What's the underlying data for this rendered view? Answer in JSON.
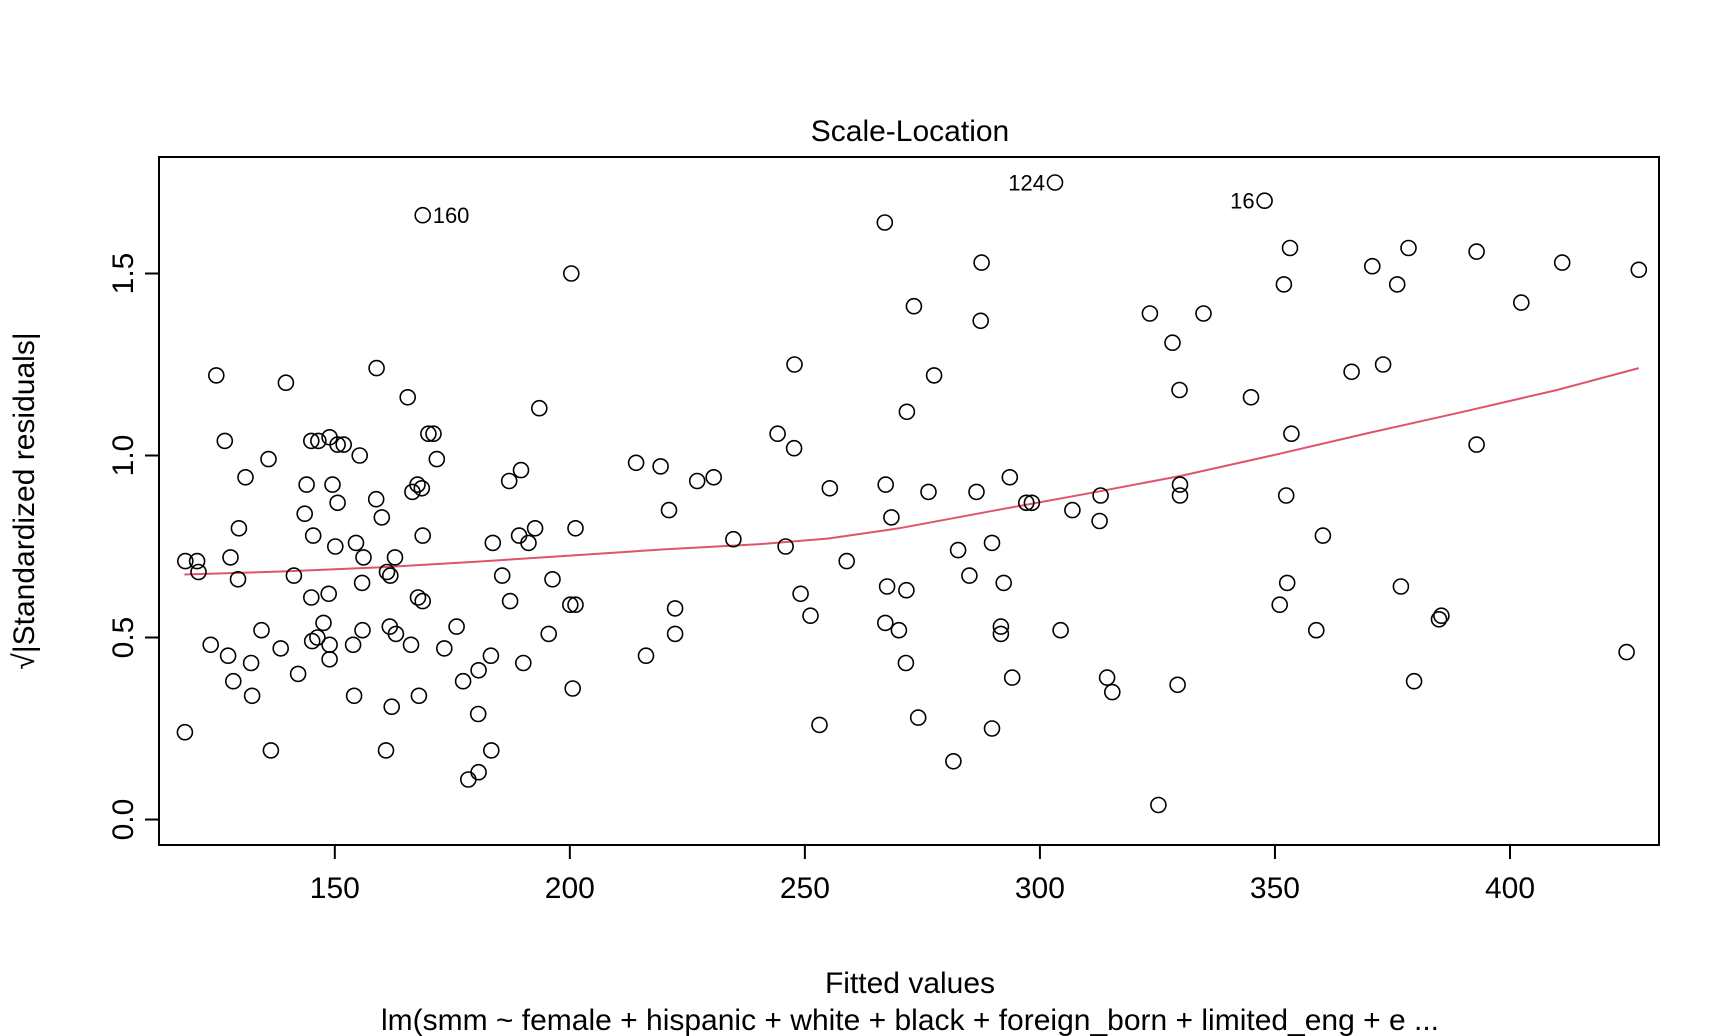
{
  "chart_data": {
    "type": "scatter",
    "title": "Scale-Location",
    "xlabel": "Fitted values",
    "ylabel": "√|Standardized residuals|",
    "subtitle": "lm(smm ~ female + hispanic + white + black + foreign_born + limited_eng + e ...",
    "xlim": [
      112.6,
      431.7
    ],
    "ylim": [
      -0.07,
      1.82
    ],
    "x_ticks": [
      150,
      200,
      250,
      300,
      350,
      400
    ],
    "y_ticks": [
      0.0,
      0.5,
      1.0,
      1.5
    ],
    "x_tick_labels": [
      "150",
      "200",
      "250",
      "300",
      "350",
      "400"
    ],
    "y_tick_labels": [
      "0.0",
      "0.5",
      "1.0",
      "1.5"
    ],
    "grid": false,
    "point_color": "#000000",
    "smooth_color": "#DF536B",
    "annotations": [
      {
        "label": "160",
        "x": 168.7,
        "y": 1.66,
        "side": "right"
      },
      {
        "label": "124",
        "x": 303.2,
        "y": 1.75,
        "side": "left"
      },
      {
        "label": "16",
        "x": 347.8,
        "y": 1.7,
        "side": "left"
      }
    ],
    "points": [
      [
        168.7,
        1.66
      ],
      [
        200.3,
        1.5
      ],
      [
        303.2,
        1.75
      ],
      [
        347.8,
        1.7
      ],
      [
        267.0,
        1.64
      ],
      [
        287.6,
        1.53
      ],
      [
        273.2,
        1.41
      ],
      [
        287.4,
        1.37
      ],
      [
        353.2,
        1.57
      ],
      [
        351.9,
        1.47
      ],
      [
        370.7,
        1.52
      ],
      [
        378.4,
        1.57
      ],
      [
        376.0,
        1.47
      ],
      [
        392.9,
        1.56
      ],
      [
        411.1,
        1.53
      ],
      [
        427.4,
        1.51
      ],
      [
        402.4,
        1.42
      ],
      [
        323.4,
        1.39
      ],
      [
        328.2,
        1.31
      ],
      [
        334.8,
        1.39
      ],
      [
        329.7,
        1.18
      ],
      [
        344.9,
        1.16
      ],
      [
        353.5,
        1.06
      ],
      [
        366.3,
        1.23
      ],
      [
        373.0,
        1.25
      ],
      [
        392.9,
        1.03
      ],
      [
        124.8,
        1.22
      ],
      [
        139.6,
        1.2
      ],
      [
        158.9,
        1.24
      ],
      [
        165.5,
        1.16
      ],
      [
        193.5,
        1.13
      ],
      [
        247.8,
        1.25
      ],
      [
        277.5,
        1.22
      ],
      [
        271.7,
        1.12
      ],
      [
        126.6,
        1.04
      ],
      [
        145.0,
        1.04
      ],
      [
        146.5,
        1.04
      ],
      [
        148.9,
        1.05
      ],
      [
        150.6,
        1.03
      ],
      [
        151.9,
        1.03
      ],
      [
        169.9,
        1.06
      ],
      [
        171.0,
        1.06
      ],
      [
        131.0,
        0.94
      ],
      [
        135.9,
        0.99
      ],
      [
        155.3,
        1.0
      ],
      [
        171.7,
        0.99
      ],
      [
        144.0,
        0.92
      ],
      [
        149.5,
        0.92
      ],
      [
        166.5,
        0.9
      ],
      [
        167.6,
        0.92
      ],
      [
        168.5,
        0.91
      ],
      [
        158.8,
        0.88
      ],
      [
        150.6,
        0.87
      ],
      [
        143.6,
        0.84
      ],
      [
        160.0,
        0.83
      ],
      [
        145.4,
        0.78
      ],
      [
        168.7,
        0.78
      ],
      [
        154.5,
        0.76
      ],
      [
        150.1,
        0.75
      ],
      [
        156.1,
        0.72
      ],
      [
        162.8,
        0.72
      ],
      [
        187.1,
        0.93
      ],
      [
        189.6,
        0.96
      ],
      [
        214.1,
        0.98
      ],
      [
        219.3,
        0.97
      ],
      [
        227.1,
        0.93
      ],
      [
        230.6,
        0.94
      ],
      [
        244.2,
        1.06
      ],
      [
        247.7,
        1.02
      ],
      [
        255.3,
        0.91
      ],
      [
        267.2,
        0.92
      ],
      [
        276.3,
        0.9
      ],
      [
        286.5,
        0.9
      ],
      [
        293.6,
        0.94
      ],
      [
        297.1,
        0.87
      ],
      [
        298.3,
        0.87
      ],
      [
        312.9,
        0.89
      ],
      [
        329.8,
        0.92
      ],
      [
        329.8,
        0.89
      ],
      [
        352.4,
        0.89
      ],
      [
        360.2,
        0.78
      ],
      [
        306.9,
        0.85
      ],
      [
        312.7,
        0.82
      ],
      [
        268.4,
        0.83
      ],
      [
        221.1,
        0.85
      ],
      [
        192.6,
        0.8
      ],
      [
        201.2,
        0.8
      ],
      [
        191.2,
        0.76
      ],
      [
        189.2,
        0.78
      ],
      [
        183.6,
        0.76
      ],
      [
        234.8,
        0.77
      ],
      [
        245.9,
        0.75
      ],
      [
        258.9,
        0.71
      ],
      [
        282.6,
        0.74
      ],
      [
        289.8,
        0.76
      ],
      [
        118.2,
        0.71
      ],
      [
        120.7,
        0.71
      ],
      [
        127.8,
        0.72
      ],
      [
        121.0,
        0.68
      ],
      [
        129.6,
        0.8
      ],
      [
        129.4,
        0.66
      ],
      [
        141.3,
        0.67
      ],
      [
        161.1,
        0.68
      ],
      [
        161.8,
        0.67
      ],
      [
        155.8,
        0.65
      ],
      [
        148.7,
        0.62
      ],
      [
        145.0,
        0.61
      ],
      [
        167.7,
        0.61
      ],
      [
        168.7,
        0.6
      ],
      [
        187.3,
        0.6
      ],
      [
        196.3,
        0.66
      ],
      [
        185.6,
        0.67
      ],
      [
        200.1,
        0.59
      ],
      [
        201.2,
        0.59
      ],
      [
        222.4,
        0.58
      ],
      [
        249.1,
        0.62
      ],
      [
        251.2,
        0.56
      ],
      [
        267.5,
        0.64
      ],
      [
        271.6,
        0.63
      ],
      [
        285.0,
        0.67
      ],
      [
        292.3,
        0.65
      ],
      [
        267.1,
        0.54
      ],
      [
        270.0,
        0.52
      ],
      [
        291.7,
        0.53
      ],
      [
        291.7,
        0.51
      ],
      [
        304.4,
        0.52
      ],
      [
        352.6,
        0.65
      ],
      [
        351.0,
        0.59
      ],
      [
        358.8,
        0.52
      ],
      [
        376.8,
        0.64
      ],
      [
        384.9,
        0.55
      ],
      [
        385.4,
        0.56
      ],
      [
        424.8,
        0.46
      ],
      [
        147.6,
        0.54
      ],
      [
        146.3,
        0.5
      ],
      [
        145.2,
        0.49
      ],
      [
        148.9,
        0.48
      ],
      [
        153.9,
        0.48
      ],
      [
        155.9,
        0.52
      ],
      [
        161.7,
        0.53
      ],
      [
        163.0,
        0.51
      ],
      [
        166.2,
        0.48
      ],
      [
        175.9,
        0.53
      ],
      [
        173.3,
        0.47
      ],
      [
        195.5,
        0.51
      ],
      [
        222.4,
        0.51
      ],
      [
        216.2,
        0.45
      ],
      [
        134.4,
        0.52
      ],
      [
        138.5,
        0.47
      ],
      [
        123.6,
        0.48
      ],
      [
        127.3,
        0.45
      ],
      [
        128.4,
        0.38
      ],
      [
        132.2,
        0.43
      ],
      [
        132.4,
        0.34
      ],
      [
        142.2,
        0.4
      ],
      [
        148.9,
        0.44
      ],
      [
        154.1,
        0.34
      ],
      [
        162.1,
        0.31
      ],
      [
        167.9,
        0.34
      ],
      [
        177.3,
        0.38
      ],
      [
        180.6,
        0.41
      ],
      [
        183.2,
        0.45
      ],
      [
        190.1,
        0.43
      ],
      [
        200.6,
        0.36
      ],
      [
        180.5,
        0.29
      ],
      [
        183.3,
        0.19
      ],
      [
        178.4,
        0.11
      ],
      [
        180.6,
        0.13
      ],
      [
        160.9,
        0.19
      ],
      [
        136.4,
        0.19
      ],
      [
        118.1,
        0.24
      ],
      [
        253.1,
        0.26
      ],
      [
        274.1,
        0.28
      ],
      [
        271.5,
        0.43
      ],
      [
        281.6,
        0.16
      ],
      [
        289.8,
        0.25
      ],
      [
        294.1,
        0.39
      ],
      [
        314.3,
        0.39
      ],
      [
        315.4,
        0.35
      ],
      [
        329.3,
        0.37
      ],
      [
        379.6,
        0.38
      ],
      [
        325.2,
        0.04
      ]
    ],
    "smooth_line": [
      [
        118.0,
        0.673
      ],
      [
        140.0,
        0.682
      ],
      [
        160.0,
        0.693
      ],
      [
        180.0,
        0.708
      ],
      [
        200.0,
        0.725
      ],
      [
        220.0,
        0.742
      ],
      [
        240.0,
        0.756
      ],
      [
        255.0,
        0.772
      ],
      [
        270.0,
        0.8
      ],
      [
        290.0,
        0.848
      ],
      [
        310.0,
        0.895
      ],
      [
        330.0,
        0.944
      ],
      [
        350.0,
        1.002
      ],
      [
        370.0,
        1.062
      ],
      [
        390.0,
        1.12
      ],
      [
        410.0,
        1.18
      ],
      [
        427.4,
        1.24
      ]
    ]
  }
}
